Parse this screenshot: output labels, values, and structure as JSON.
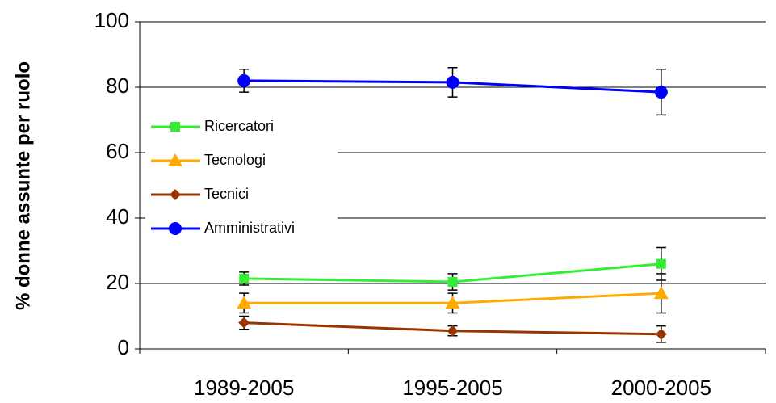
{
  "chart_data": {
    "type": "line",
    "y_label": "% donne assunte per ruolo",
    "categories": [
      "1989-2005",
      "1995-2005",
      "2000-2005"
    ],
    "series": [
      {
        "name": "Ricercatori",
        "color": "#33ee33",
        "marker": "square",
        "values": [
          21.5,
          20.5,
          26
        ],
        "errors": [
          2,
          2.5,
          5
        ]
      },
      {
        "name": "Tecnologi",
        "color": "#ffaa00",
        "marker": "triangle",
        "values": [
          14,
          14,
          17
        ],
        "errors": [
          3,
          3,
          6
        ]
      },
      {
        "name": "Tecnici",
        "color": "#993300",
        "marker": "diamond",
        "values": [
          8,
          5.5,
          4.5
        ],
        "errors": [
          2,
          1.5,
          2.5
        ]
      },
      {
        "name": "Amministrativi",
        "color": "#0000ff",
        "marker": "circle",
        "values": [
          82,
          81.5,
          78.5
        ],
        "errors": [
          3.5,
          4.5,
          7
        ]
      }
    ],
    "ylim": [
      0,
      100
    ],
    "yticks": [
      0,
      20,
      40,
      60,
      80,
      100
    ],
    "grid": true
  }
}
